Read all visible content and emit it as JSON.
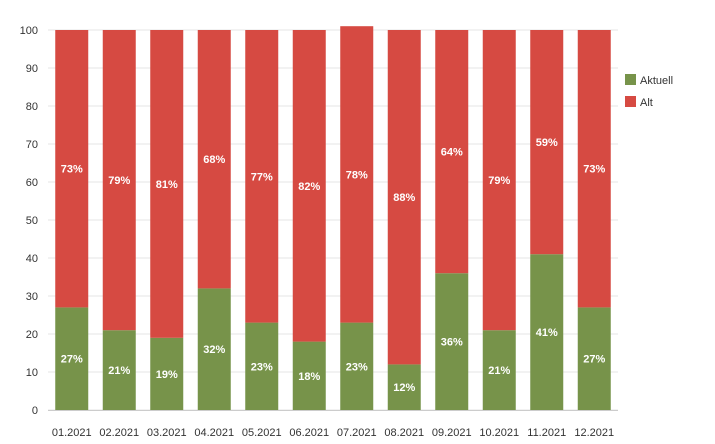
{
  "chart_data": {
    "type": "bar",
    "stacked": true,
    "categories": [
      "01.2021",
      "02.2021",
      "03.2021",
      "04.2021",
      "05.2021",
      "06.2021",
      "07.2021",
      "08.2021",
      "09.2021",
      "10.2021",
      "11.2021",
      "12.2021"
    ],
    "series": [
      {
        "name": "Aktuell",
        "color": "#77934a",
        "values": [
          27,
          21,
          19,
          32,
          23,
          18,
          23,
          12,
          36,
          21,
          41,
          27
        ]
      },
      {
        "name": "Alt",
        "color": "#d64a42",
        "values": [
          73,
          79,
          81,
          68,
          77,
          82,
          78,
          88,
          64,
          79,
          59,
          73
        ]
      }
    ],
    "data_labels": {
      "Aktuell": [
        "27%",
        "21%",
        "19%",
        "32%",
        "23%",
        "18%",
        "23%",
        "12%",
        "36%",
        "21%",
        "41%",
        "27%"
      ],
      "Alt": [
        "73%",
        "79%",
        "81%",
        "68%",
        "77%",
        "82%",
        "78%",
        "88%",
        "64%",
        "79%",
        "59%",
        "73%"
      ]
    },
    "yticks": [
      "0",
      "10",
      "20",
      "30",
      "40",
      "50",
      "60",
      "70",
      "80",
      "90",
      "100"
    ],
    "ylim": [
      0,
      100
    ],
    "grid": true,
    "legend_position": "right"
  }
}
